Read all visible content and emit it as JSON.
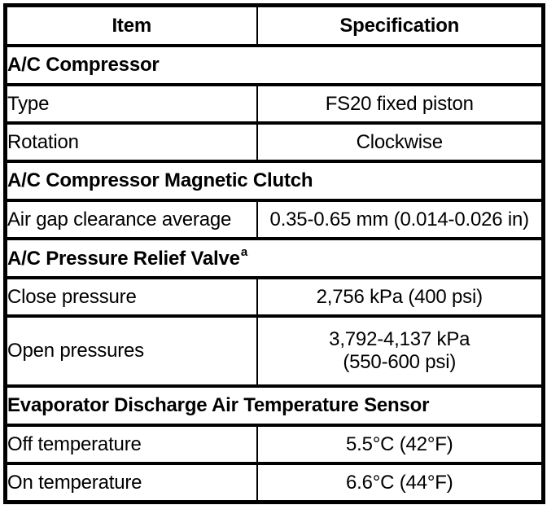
{
  "colors": {
    "background": "#ffffff",
    "border": "#000000",
    "text": "#000000"
  },
  "table": {
    "header": {
      "item": "Item",
      "specification": "Specification"
    },
    "rows": [
      {
        "kind": "section",
        "title": "A/C Compressor"
      },
      {
        "kind": "data",
        "item": "Type",
        "spec": "FS20 fixed piston"
      },
      {
        "kind": "data",
        "item": "Rotation",
        "spec": "Clockwise"
      },
      {
        "kind": "section",
        "title": "A/C Compressor Magnetic Clutch"
      },
      {
        "kind": "data",
        "item": "Air gap clearance average",
        "spec": "0.35-0.65 mm (0.014-0.026 in)"
      },
      {
        "kind": "section",
        "title": "A/C Pressure Relief Valve",
        "footnote_marker": "a"
      },
      {
        "kind": "data",
        "item": "Close pressure",
        "spec": "2,756 kPa (400 psi)"
      },
      {
        "kind": "data",
        "item": "Open pressures",
        "spec_line1": "3,792-4,137 kPa",
        "spec_line2": "(550-600 psi)"
      },
      {
        "kind": "section",
        "title": "Evaporator Discharge Air Temperature Sensor"
      },
      {
        "kind": "data",
        "item": "Off temperature",
        "spec": "5.5°C (42°F)"
      },
      {
        "kind": "data",
        "item": "On temperature",
        "spec": "6.6°C (44°F)"
      }
    ]
  }
}
